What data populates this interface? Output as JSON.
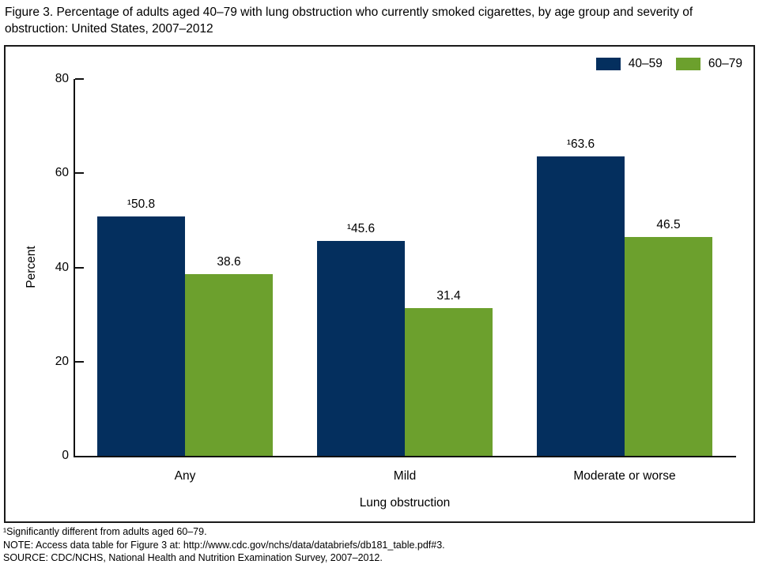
{
  "header": {
    "title": "Figure 3. Percentage of adults aged 40–79 with lung obstruction who currently smoked cigarettes, by age group and severity of obstruction: United States, 2007–2012"
  },
  "chart_data": {
    "type": "bar",
    "title": "Figure 3. Percentage of adults aged 40–79 with lung obstruction who currently smoked cigarettes, by age group and severity of obstruction: United States, 2007–2012",
    "categories": [
      "Any",
      "Mild",
      "Moderate or worse"
    ],
    "series": [
      {
        "name": "40–59",
        "color": "#042f5e",
        "values": [
          50.8,
          45.6,
          63.6
        ],
        "flagged": [
          true,
          true,
          true
        ]
      },
      {
        "name": "60–79",
        "color": "#6ca02d",
        "values": [
          38.6,
          31.4,
          46.5
        ],
        "flagged": [
          false,
          false,
          false
        ]
      }
    ],
    "flag_symbol": "¹",
    "xlabel": "Lung obstruction",
    "ylabel": "Percent",
    "ylim": [
      0,
      80
    ],
    "yticks": [
      0,
      20,
      40,
      60,
      80
    ],
    "grid": false,
    "legend_position": "top-right"
  },
  "footnotes": [
    "¹Significantly different from adults aged 60–79.",
    "NOTE: Access data table for Figure 3 at: http://www.cdc.gov/nchs/data/databriefs/db181_table.pdf#3.",
    "SOURCE: CDC/NCHS, National Health and Nutrition Examination Survey, 2007–2012."
  ]
}
